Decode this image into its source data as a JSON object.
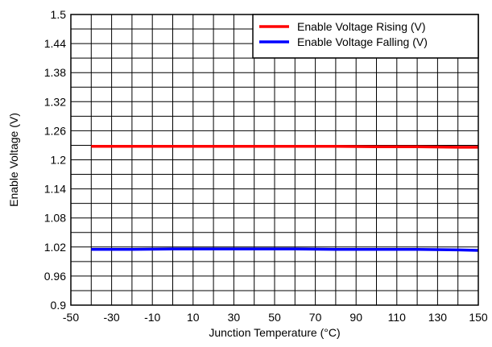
{
  "chart_data": {
    "type": "line",
    "title": "",
    "xlabel": "Junction Temperature (°C)",
    "ylabel": "Enable Voltage (V)",
    "xlim": [
      -50,
      150
    ],
    "ylim": [
      0.9,
      1.5
    ],
    "x_ticks": [
      -50,
      -30,
      -10,
      10,
      30,
      50,
      70,
      90,
      110,
      130,
      150
    ],
    "x_tick_labels": [
      "-50",
      "-30",
      "-10",
      "10",
      "30",
      "50",
      "70",
      "90",
      "110",
      "130",
      "150"
    ],
    "y_ticks": [
      0.9,
      0.96,
      1.02,
      1.08,
      1.14,
      1.2,
      1.26,
      1.32,
      1.38,
      1.44,
      1.5
    ],
    "y_tick_labels": [
      "0.9",
      "0.96",
      "1.02",
      "1.08",
      "1.14",
      "1.2",
      "1.26",
      "1.32",
      "1.38",
      "1.44",
      "1.5"
    ],
    "grid": true,
    "legend_position": "top-right",
    "series": [
      {
        "name": "Enable Voltage Rising (V)",
        "color": "#ff0000",
        "x": [
          -40,
          -20,
          0,
          20,
          40,
          60,
          80,
          100,
          120,
          140,
          150
        ],
        "y": [
          1.228,
          1.228,
          1.228,
          1.228,
          1.228,
          1.228,
          1.228,
          1.227,
          1.227,
          1.226,
          1.226
        ]
      },
      {
        "name": "Enable Voltage Falling (V)",
        "color": "#0000ff",
        "x": [
          -40,
          -20,
          0,
          20,
          40,
          60,
          80,
          100,
          120,
          140,
          150
        ],
        "y": [
          1.015,
          1.015,
          1.016,
          1.016,
          1.016,
          1.016,
          1.015,
          1.015,
          1.015,
          1.014,
          1.013
        ]
      }
    ]
  }
}
